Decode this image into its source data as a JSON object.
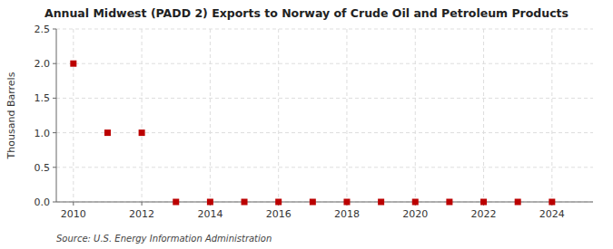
{
  "chart_data": {
    "type": "scatter",
    "title": "Annual Midwest (PADD 2) Exports to Norway of Crude Oil and Petroleum Products",
    "y_label": "Thousand Barrels",
    "source": "Source: U.S. Energy Information Administration",
    "x": [
      2010,
      2011,
      2012,
      2013,
      2014,
      2015,
      2016,
      2017,
      2018,
      2019,
      2020,
      2021,
      2022,
      2023,
      2024
    ],
    "values": [
      2.0,
      1.0,
      1.0,
      0.0,
      0.0,
      0.0,
      0.0,
      0.0,
      0.0,
      0.0,
      0.0,
      0.0,
      0.0,
      0.0,
      0.0
    ],
    "color": "#bb0000",
    "marker": "square",
    "xlim": [
      2009.5,
      2025.2
    ],
    "ylim": [
      0.0,
      2.5
    ],
    "xticks": [
      2010,
      2012,
      2014,
      2016,
      2018,
      2020,
      2022,
      2024
    ],
    "yticks": [
      {
        "value": 0.0,
        "label": "0.0"
      },
      0.5,
      {
        "value": 1.0,
        "label": "1.0"
      },
      1.5,
      {
        "value": 2.0,
        "label": "2.0"
      },
      2.5
    ],
    "grid": true
  }
}
